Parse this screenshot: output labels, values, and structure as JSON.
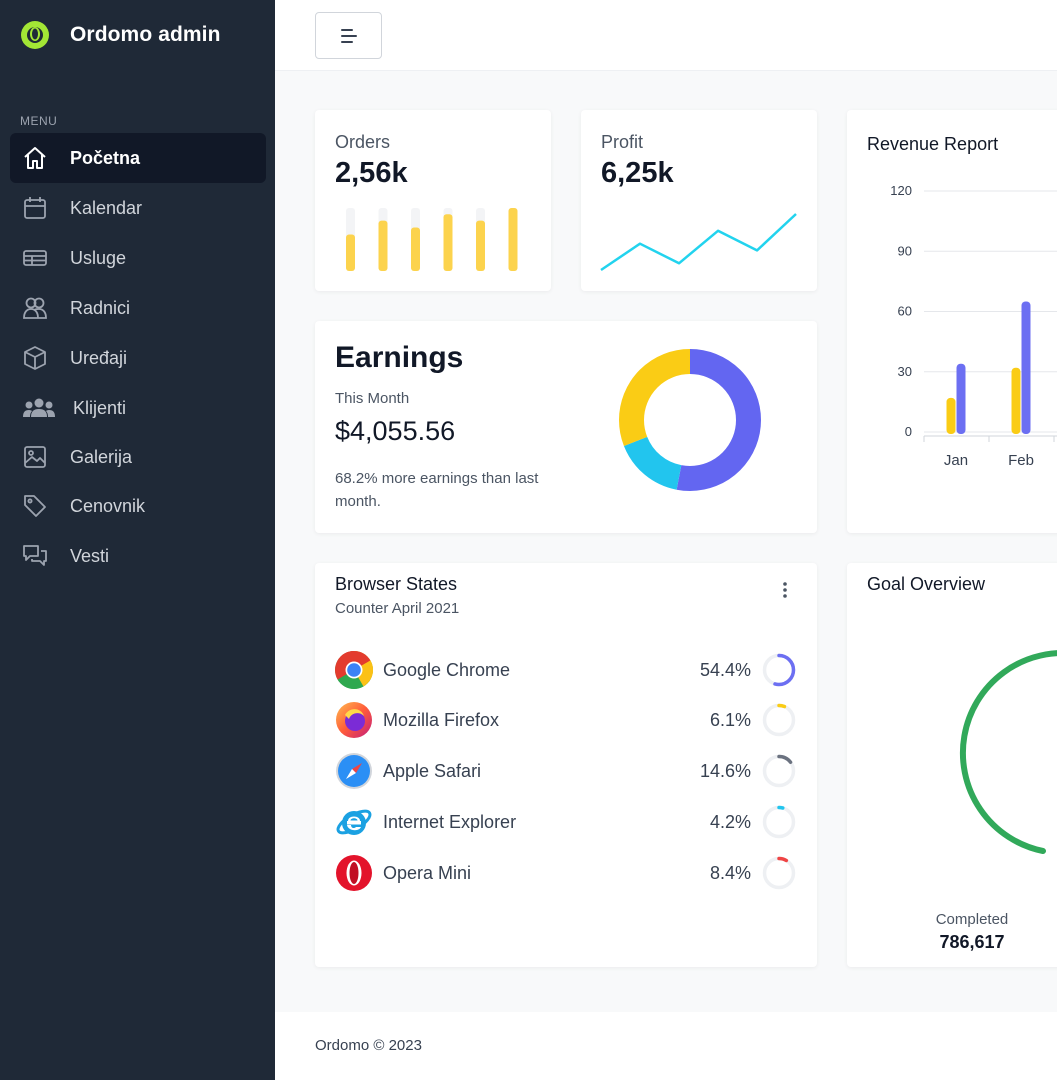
{
  "brand": {
    "name": "Ordomo admin",
    "logo_icon": "green-ring-logo"
  },
  "sidebar": {
    "menu_label": "MENU",
    "items": [
      {
        "label": "Početna",
        "icon": "home-icon",
        "active": true
      },
      {
        "label": "Kalendar",
        "icon": "calendar-icon"
      },
      {
        "label": "Usluge",
        "icon": "table-icon"
      },
      {
        "label": "Radnici",
        "icon": "users-icon"
      },
      {
        "label": "Uređaji",
        "icon": "cube-icon"
      },
      {
        "label": "Klijenti",
        "icon": "user-group-icon"
      },
      {
        "label": "Galerija",
        "icon": "image-icon"
      },
      {
        "label": "Cenovnik",
        "icon": "tag-icon"
      },
      {
        "label": "Vesti",
        "icon": "chat-icon"
      }
    ]
  },
  "topbar": {
    "toggle_icon": "menu-align-icon"
  },
  "orders": {
    "label": "Orders",
    "value": "2,56k",
    "bar_color": "#fcd34d",
    "track_color": "#f3f4f6",
    "bars": [
      0.58,
      0.8,
      0.69,
      0.9,
      0.8,
      1.0
    ]
  },
  "profit": {
    "label": "Profit",
    "value": "6,25k",
    "line_color": "#22d3ee",
    "points": [
      0.0,
      0.47,
      0.12,
      0.7,
      0.35,
      1.0
    ]
  },
  "earnings": {
    "title": "Earnings",
    "subtitle": "This Month",
    "amount": "$4,055.56",
    "note": "68.2% more earnings than last month.",
    "donut": [
      {
        "value": 53,
        "color": "#6366f1"
      },
      {
        "value": 16,
        "color": "#22c5ee"
      },
      {
        "value": 31,
        "color": "#facc15"
      }
    ]
  },
  "revenue": {
    "title": "Revenue Report",
    "chart_data": {
      "type": "bar",
      "categories": [
        "Jan",
        "Feb"
      ],
      "series": [
        {
          "values": [
            17,
            32
          ],
          "color": "#facc15"
        },
        {
          "values": [
            34,
            65
          ],
          "color": "#6c6ff2"
        }
      ],
      "yticks": [
        0,
        30,
        60,
        90,
        120
      ],
      "ylim": [
        0,
        120
      ],
      "grid": true
    }
  },
  "browser": {
    "title": "Browser States",
    "subtitle": "Counter April 2021",
    "menu_icon": "kebab-icon",
    "rows": [
      {
        "name": "Google Chrome",
        "percent": "54.4%",
        "value": 54.4,
        "color": "#6c6ff2",
        "icon": "chrome-icon"
      },
      {
        "name": "Mozilla Firefox",
        "percent": "6.1%",
        "value": 6.1,
        "color": "#facc15",
        "icon": "firefox-icon"
      },
      {
        "name": "Apple Safari",
        "percent": "14.6%",
        "value": 14.6,
        "color": "#6b7280",
        "icon": "safari-icon"
      },
      {
        "name": "Internet Explorer",
        "percent": "4.2%",
        "value": 4.2,
        "color": "#22c5ee",
        "icon": "ie-icon"
      },
      {
        "name": "Opera Mini",
        "percent": "8.4%",
        "value": 8.4,
        "color": "#ef4444",
        "icon": "opera-icon"
      }
    ]
  },
  "goal": {
    "title": "Goal Overview",
    "completed_label": "Completed",
    "completed_value": "786,617",
    "arc_color": "#31a95a"
  },
  "footer": {
    "text": "Ordomo © 2023"
  }
}
